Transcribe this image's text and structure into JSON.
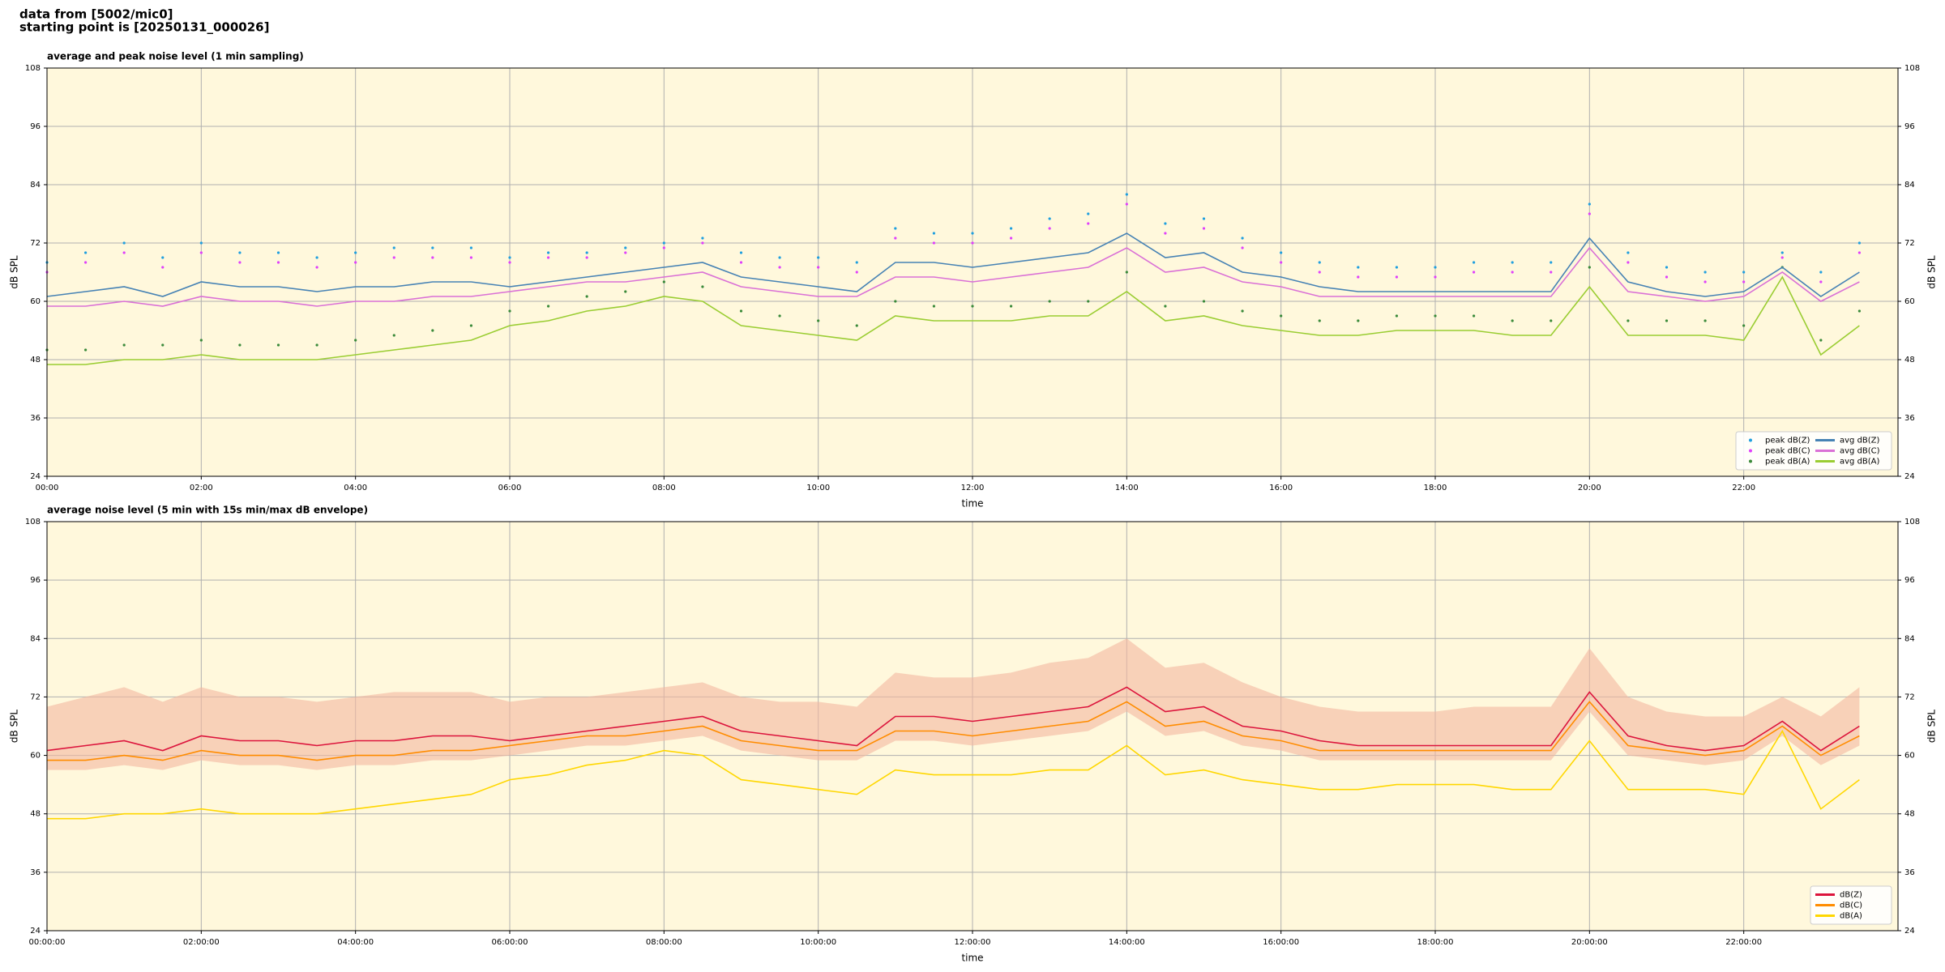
{
  "header": [
    "data from [5002/mic0]",
    "starting point is [20250131_000026]"
  ],
  "chart_data": [
    {
      "type": "line",
      "title": "average and peak noise level (1 min sampling)",
      "xlabel": "time",
      "ylabel": "dB SPL",
      "y2label": "dB SPL",
      "xlim": [
        0,
        24
      ],
      "ylim": [
        24,
        108
      ],
      "xticks": [
        {
          "value": 0,
          "label": "00:00"
        },
        {
          "value": 2,
          "label": "02:00"
        },
        {
          "value": 4,
          "label": "04:00"
        },
        {
          "value": 6,
          "label": "06:00"
        },
        {
          "value": 8,
          "label": "08:00"
        },
        {
          "value": 10,
          "label": "10:00"
        },
        {
          "value": 12,
          "label": "12:00"
        },
        {
          "value": 14,
          "label": "14:00"
        },
        {
          "value": 16,
          "label": "16:00"
        },
        {
          "value": 18,
          "label": "18:00"
        },
        {
          "value": 20,
          "label": "20:00"
        },
        {
          "value": 22,
          "label": "22:00"
        }
      ],
      "yticks": [
        24,
        36,
        48,
        60,
        72,
        84,
        96,
        108
      ],
      "y2ticks": [
        24,
        36,
        48,
        60,
        72,
        84,
        96,
        108
      ],
      "grid": true,
      "legend": "lower right",
      "legend_columns": 2,
      "x": [
        0,
        0.5,
        1,
        1.5,
        2,
        2.5,
        3,
        3.5,
        4,
        4.5,
        5,
        5.5,
        6,
        6.5,
        7,
        7.5,
        8,
        8.5,
        9,
        9.5,
        10,
        10.5,
        11,
        11.5,
        12,
        12.5,
        13,
        13.5,
        14,
        14.5,
        15,
        15.5,
        16,
        16.5,
        17,
        17.5,
        18,
        18.5,
        19,
        19.5,
        20,
        20.5,
        21,
        21.5,
        22,
        22.5,
        23,
        23.5
      ],
      "series": [
        {
          "name": "peak dB(Z)",
          "kind": "scatter",
          "color": "#1f9fdf",
          "values": [
            68,
            70,
            72,
            69,
            72,
            70,
            70,
            69,
            70,
            71,
            71,
            71,
            69,
            70,
            70,
            71,
            72,
            73,
            70,
            69,
            69,
            68,
            75,
            74,
            74,
            75,
            77,
            78,
            82,
            76,
            77,
            73,
            70,
            68,
            67,
            67,
            67,
            68,
            68,
            68,
            80,
            70,
            67,
            66,
            66,
            70,
            66,
            72
          ]
        },
        {
          "name": "peak dB(C)",
          "kind": "scatter",
          "color": "#e040fb",
          "values": [
            66,
            68,
            70,
            67,
            70,
            68,
            68,
            67,
            68,
            69,
            69,
            69,
            68,
            69,
            69,
            70,
            71,
            72,
            68,
            67,
            67,
            66,
            73,
            72,
            72,
            73,
            75,
            76,
            80,
            74,
            75,
            71,
            68,
            66,
            65,
            65,
            65,
            66,
            66,
            66,
            78,
            68,
            65,
            64,
            64,
            69,
            64,
            70
          ]
        },
        {
          "name": "peak dB(A)",
          "kind": "scatter",
          "color": "#3a8a3a",
          "values": [
            50,
            50,
            51,
            51,
            52,
            51,
            51,
            51,
            52,
            53,
            54,
            55,
            58,
            59,
            61,
            62,
            64,
            63,
            58,
            57,
            56,
            55,
            60,
            59,
            59,
            59,
            60,
            60,
            66,
            59,
            60,
            58,
            57,
            56,
            56,
            57,
            57,
            57,
            56,
            56,
            67,
            56,
            56,
            56,
            55,
            67,
            52,
            58
          ]
        },
        {
          "name": "avg dB(Z)",
          "kind": "line",
          "color": "#4682b4",
          "values": [
            61,
            62,
            63,
            61,
            64,
            63,
            63,
            62,
            63,
            63,
            64,
            64,
            63,
            64,
            65,
            66,
            67,
            68,
            65,
            64,
            63,
            62,
            68,
            68,
            67,
            68,
            69,
            70,
            74,
            69,
            70,
            66,
            65,
            63,
            62,
            62,
            62,
            62,
            62,
            62,
            73,
            64,
            62,
            61,
            62,
            67,
            61,
            66
          ]
        },
        {
          "name": "avg dB(C)",
          "kind": "line",
          "color": "#da70d6",
          "values": [
            59,
            59,
            60,
            59,
            61,
            60,
            60,
            59,
            60,
            60,
            61,
            61,
            62,
            63,
            64,
            64,
            65,
            66,
            63,
            62,
            61,
            61,
            65,
            65,
            64,
            65,
            66,
            67,
            71,
            66,
            67,
            64,
            63,
            61,
            61,
            61,
            61,
            61,
            61,
            61,
            71,
            62,
            61,
            60,
            61,
            66,
            60,
            64
          ]
        },
        {
          "name": "avg dB(A)",
          "kind": "line",
          "color": "#9acd32",
          "values": [
            47,
            47,
            48,
            48,
            49,
            48,
            48,
            48,
            49,
            50,
            51,
            52,
            55,
            56,
            58,
            59,
            61,
            60,
            55,
            54,
            53,
            52,
            57,
            56,
            56,
            56,
            57,
            57,
            62,
            56,
            57,
            55,
            54,
            53,
            53,
            54,
            54,
            54,
            53,
            53,
            63,
            53,
            53,
            53,
            52,
            65,
            49,
            55
          ]
        }
      ]
    },
    {
      "type": "line",
      "title": "average noise level (5 min with 15s min/max dB envelope)",
      "xlabel": "time",
      "ylabel": "dB SPL",
      "y2label": "dB SPL",
      "xlim": [
        0,
        24
      ],
      "ylim": [
        24,
        108
      ],
      "xticks": [
        {
          "value": 0,
          "label": "00:00:00"
        },
        {
          "value": 2,
          "label": "02:00:00"
        },
        {
          "value": 4,
          "label": "04:00:00"
        },
        {
          "value": 6,
          "label": "06:00:00"
        },
        {
          "value": 8,
          "label": "08:00:00"
        },
        {
          "value": 10,
          "label": "10:00:00"
        },
        {
          "value": 12,
          "label": "12:00:00"
        },
        {
          "value": 14,
          "label": "14:00:00"
        },
        {
          "value": 16,
          "label": "16:00:00"
        },
        {
          "value": 18,
          "label": "18:00:00"
        },
        {
          "value": 20,
          "label": "20:00:00"
        },
        {
          "value": 22,
          "label": "22:00:00"
        }
      ],
      "yticks": [
        24,
        36,
        48,
        60,
        72,
        84,
        96,
        108
      ],
      "y2ticks": [
        24,
        36,
        48,
        60,
        72,
        84,
        96,
        108
      ],
      "grid": true,
      "legend": "lower right",
      "legend_columns": 1,
      "x": [
        0,
        0.5,
        1,
        1.5,
        2,
        2.5,
        3,
        3.5,
        4,
        4.5,
        5,
        5.5,
        6,
        6.5,
        7,
        7.5,
        8,
        8.5,
        9,
        9.5,
        10,
        10.5,
        11,
        11.5,
        12,
        12.5,
        13,
        13.5,
        14,
        14.5,
        15,
        15.5,
        16,
        16.5,
        17,
        17.5,
        18,
        18.5,
        19,
        19.5,
        20,
        20.5,
        21,
        21.5,
        22,
        22.5,
        23,
        23.5
      ],
      "envelope": {
        "color": "#f4b8a0",
        "low": [
          57,
          57,
          58,
          57,
          59,
          58,
          58,
          57,
          58,
          58,
          59,
          59,
          60,
          61,
          62,
          62,
          63,
          64,
          61,
          60,
          59,
          59,
          63,
          63,
          62,
          63,
          64,
          65,
          69,
          64,
          65,
          62,
          61,
          59,
          59,
          59,
          59,
          59,
          59,
          59,
          69,
          60,
          59,
          58,
          59,
          64,
          58,
          62
        ],
        "high": [
          70,
          72,
          74,
          71,
          74,
          72,
          72,
          71,
          72,
          73,
          73,
          73,
          71,
          72,
          72,
          73,
          74,
          75,
          72,
          71,
          71,
          70,
          77,
          76,
          76,
          77,
          79,
          80,
          84,
          78,
          79,
          75,
          72,
          70,
          69,
          69,
          69,
          70,
          70,
          70,
          82,
          72,
          69,
          68,
          68,
          72,
          68,
          74
        ]
      },
      "series": [
        {
          "name": "dB(Z)",
          "kind": "line",
          "color": "#dc143c",
          "values": [
            61,
            62,
            63,
            61,
            64,
            63,
            63,
            62,
            63,
            63,
            64,
            64,
            63,
            64,
            65,
            66,
            67,
            68,
            65,
            64,
            63,
            62,
            68,
            68,
            67,
            68,
            69,
            70,
            74,
            69,
            70,
            66,
            65,
            63,
            62,
            62,
            62,
            62,
            62,
            62,
            73,
            64,
            62,
            61,
            62,
            67,
            61,
            66
          ]
        },
        {
          "name": "dB(C)",
          "kind": "line",
          "color": "#ff8c00",
          "values": [
            59,
            59,
            60,
            59,
            61,
            60,
            60,
            59,
            60,
            60,
            61,
            61,
            62,
            63,
            64,
            64,
            65,
            66,
            63,
            62,
            61,
            61,
            65,
            65,
            64,
            65,
            66,
            67,
            71,
            66,
            67,
            64,
            63,
            61,
            61,
            61,
            61,
            61,
            61,
            61,
            71,
            62,
            61,
            60,
            61,
            66,
            60,
            64
          ]
        },
        {
          "name": "dB(A)",
          "kind": "line",
          "color": "#ffd700",
          "values": [
            47,
            47,
            48,
            48,
            49,
            48,
            48,
            48,
            49,
            50,
            51,
            52,
            55,
            56,
            58,
            59,
            61,
            60,
            55,
            54,
            53,
            52,
            57,
            56,
            56,
            56,
            57,
            57,
            62,
            56,
            57,
            55,
            54,
            53,
            53,
            54,
            54,
            54,
            53,
            53,
            63,
            53,
            53,
            53,
            52,
            65,
            49,
            55
          ]
        }
      ]
    }
  ]
}
